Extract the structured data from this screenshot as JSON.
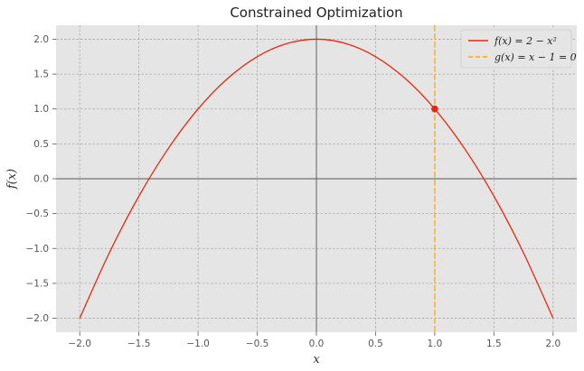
{
  "chart_data": {
    "type": "line",
    "title": "Constrained Optimization",
    "xlabel": "x",
    "ylabel": "f(x)",
    "xlim": [
      -2.2,
      2.2
    ],
    "ylim": [
      -2.2,
      2.2
    ],
    "xticks": [
      -2.0,
      -1.5,
      -1.0,
      -0.5,
      0.0,
      0.5,
      1.0,
      1.5,
      2.0
    ],
    "xtick_labels": [
      "−2.0",
      "−1.5",
      "−1.0",
      "−0.5",
      "0.0",
      "0.5",
      "1.0",
      "1.5",
      "2.0"
    ],
    "yticks": [
      -2.0,
      -1.5,
      -1.0,
      -0.5,
      0.0,
      0.5,
      1.0,
      1.5,
      2.0
    ],
    "ytick_labels": [
      "−2.0",
      "−1.5",
      "−1.0",
      "−0.5",
      "0.0",
      "0.5",
      "1.0",
      "1.5",
      "2.0"
    ],
    "grid": true,
    "legend_position": "top-right",
    "series": [
      {
        "name": "f(x) = 2 − x²",
        "kind": "curve",
        "color": "#e8270c",
        "x": [
          -2.0,
          -1.75,
          -1.5,
          -1.25,
          -1.0,
          -0.75,
          -0.5,
          -0.25,
          0.0,
          0.25,
          0.5,
          0.75,
          1.0,
          1.25,
          1.5,
          1.75,
          2.0
        ],
        "y": [
          -2.0,
          -1.0625,
          -0.25,
          0.4375,
          1.0,
          1.4375,
          1.75,
          1.9375,
          2.0,
          1.9375,
          1.75,
          1.4375,
          1.0,
          0.4375,
          -0.25,
          -1.0625,
          -2.0
        ]
      },
      {
        "name": "g(x) = x − 1 = 0",
        "kind": "vertical-dashed",
        "color": "#ffa31a",
        "x": 1.0
      }
    ],
    "points": [
      {
        "x": 1.0,
        "y": 1.0,
        "color": "#e8270c"
      }
    ],
    "reference_lines": {
      "x0": 0.0,
      "y0": 0.0,
      "color": "#555555"
    }
  }
}
